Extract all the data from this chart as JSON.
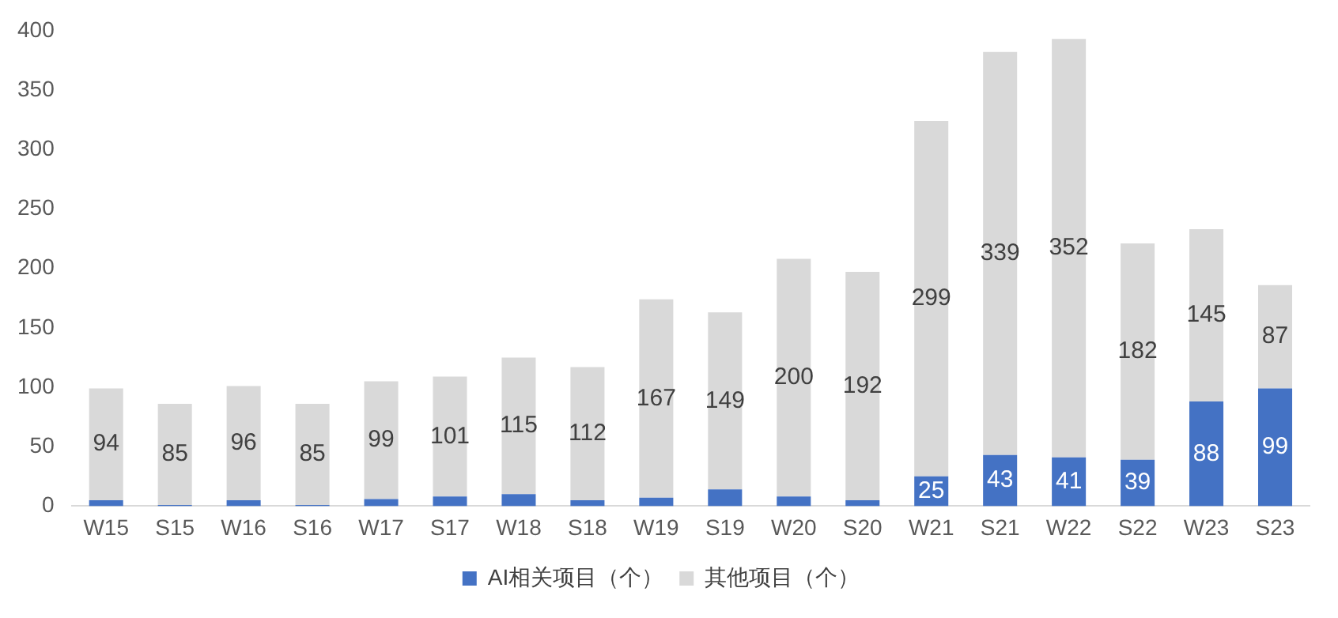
{
  "chart_data": {
    "type": "bar",
    "stacked": true,
    "categories": [
      "W15",
      "S15",
      "W16",
      "S16",
      "W17",
      "S17",
      "W18",
      "S18",
      "W19",
      "S19",
      "W20",
      "S20",
      "W21",
      "S21",
      "W22",
      "S22",
      "W23",
      "S23"
    ],
    "series": [
      {
        "name": "AI相关项目（个）",
        "color": "#4472c4",
        "values": [
          5,
          1,
          5,
          1,
          6,
          8,
          10,
          5,
          7,
          14,
          8,
          5,
          25,
          43,
          41,
          39,
          88,
          99
        ],
        "value_labels": [
          null,
          null,
          null,
          null,
          null,
          null,
          null,
          null,
          null,
          null,
          null,
          null,
          "25",
          "43",
          "41",
          "39",
          "88",
          "99"
        ]
      },
      {
        "name": "其他项目（个）",
        "color": "#d9d9d9",
        "values": [
          94,
          85,
          96,
          85,
          99,
          101,
          115,
          112,
          167,
          149,
          200,
          192,
          299,
          339,
          352,
          182,
          145,
          87
        ],
        "value_labels": [
          "94",
          "85",
          "96",
          "85",
          "99",
          "101",
          "115",
          "112",
          "167",
          "149",
          "200",
          "192",
          "299",
          "339",
          "352",
          "182",
          "145",
          "87"
        ]
      }
    ],
    "ylim": [
      0,
      400
    ],
    "yticks": [
      0,
      50,
      100,
      150,
      200,
      250,
      300,
      350,
      400
    ],
    "grid": false,
    "legend": "bottom"
  }
}
